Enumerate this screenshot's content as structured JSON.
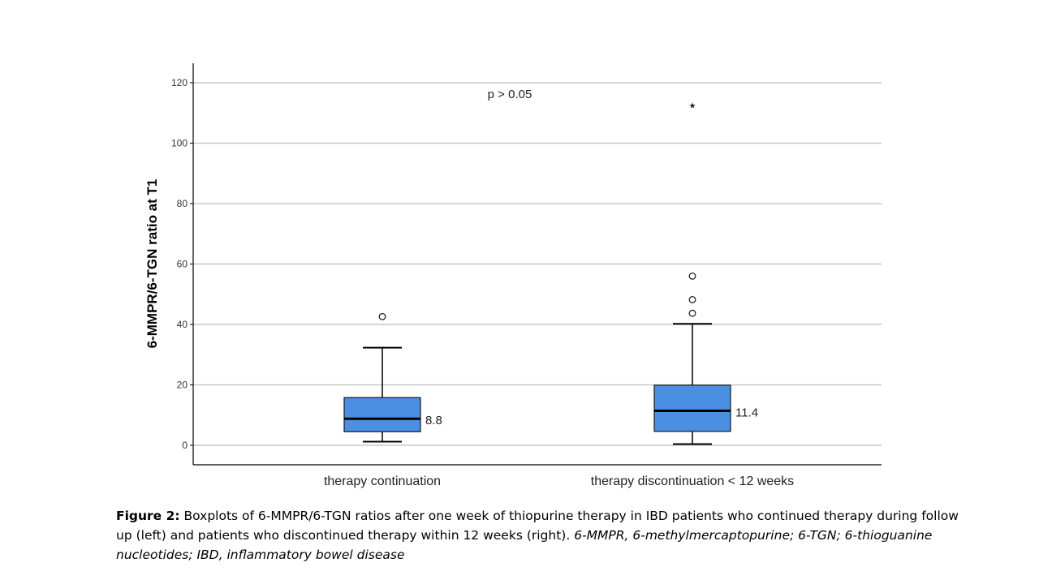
{
  "chart_data": {
    "type": "box",
    "ylabel": "6-MMPR/6-TGN ratio at T1",
    "xlabel": "",
    "ylim": [
      -6,
      127
    ],
    "yticks": [
      0,
      20,
      40,
      60,
      80,
      100,
      120
    ],
    "grid": true,
    "annotation": "p > 0.05",
    "categories": [
      "therapy continuation",
      "therapy discontinuation < 12 weeks"
    ],
    "boxes": [
      {
        "category": "therapy continuation",
        "whisker_low": 1.2,
        "q1": 4.5,
        "median": 8.8,
        "q3": 15.8,
        "whisker_high": 32.3,
        "outliers": [
          42.6
        ],
        "extremes": [],
        "median_label": "8.8"
      },
      {
        "category": "therapy discontinuation < 12 weeks",
        "whisker_low": 0.4,
        "q1": 4.6,
        "median": 11.4,
        "q3": 19.9,
        "whisker_high": 40.2,
        "outliers": [
          43.7,
          48.2,
          56.0
        ],
        "extremes": [
          112.6
        ],
        "median_label": "11.4"
      }
    ],
    "colors": {
      "box_fill": "#4a8fe0",
      "grid": "#c8c8c8",
      "axis": "#000000"
    }
  },
  "caption": {
    "label": "Figure 2:",
    "text": " Boxplots of 6-MMPR/6-TGN ratios after one week of thiopurine therapy in IBD patients who continued therapy during follow up (left) and patients who discontinued therapy within 12 weeks (right). ",
    "italic": "6-MMPR, 6-methylmercaptopurine; 6-TGN; 6-thioguanine nucleotides; IBD, inflammatory bowel disease"
  }
}
